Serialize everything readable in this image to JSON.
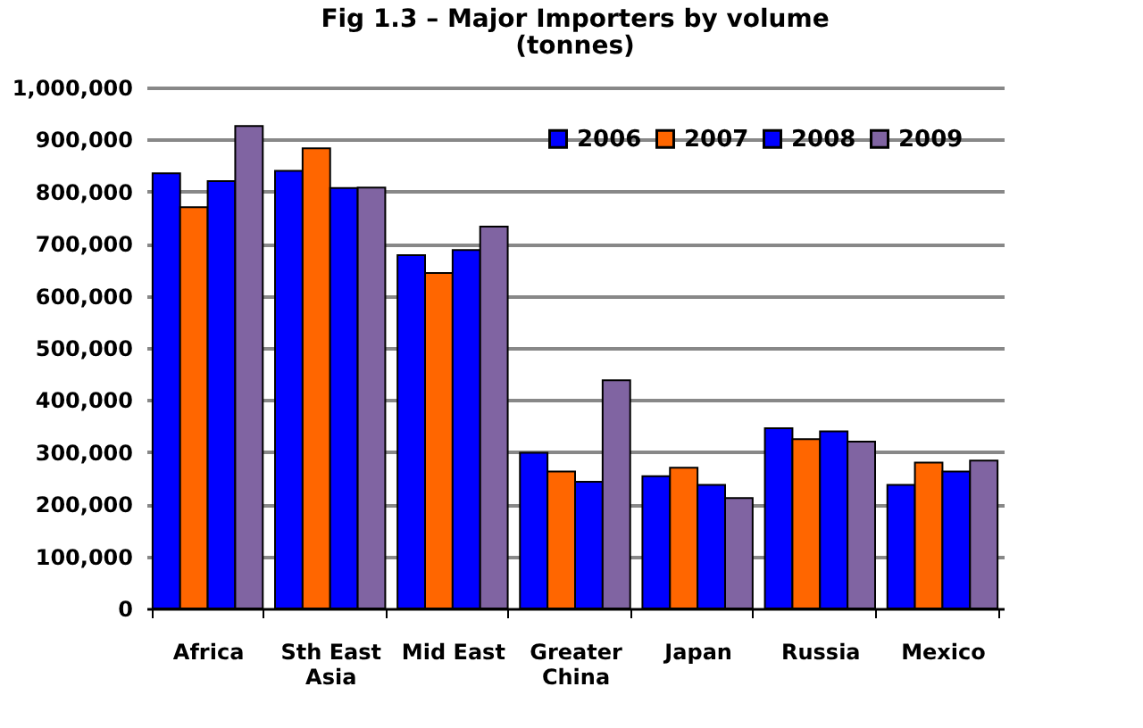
{
  "chart_data": {
    "type": "bar",
    "title": "Fig 1.3 – Major Importers by volume",
    "subtitle": "(tonnes)",
    "categories": [
      "Africa",
      "Sth East Asia",
      "Mid East",
      "Greater China",
      "Japan",
      "Russia",
      "Mexico"
    ],
    "series": [
      {
        "name": "2006",
        "color": "#0000ff",
        "values": [
          835000,
          840000,
          678000,
          299000,
          254000,
          346000,
          237000
        ]
      },
      {
        "name": "2007",
        "color": "#ff6600",
        "values": [
          770000,
          883000,
          644000,
          263000,
          270000,
          325000,
          280000
        ]
      },
      {
        "name": "2008",
        "color": "#0000ff",
        "values": [
          820000,
          807000,
          688000,
          243000,
          237000,
          340000,
          263000
        ]
      },
      {
        "name": "2009",
        "color": "#8064a2",
        "values": [
          926000,
          808000,
          733000,
          438000,
          212000,
          320000,
          284000
        ]
      }
    ],
    "ylim": [
      0,
      1000000
    ],
    "yticks": [
      0,
      {
        "value": 100000,
        "label": "100,000"
      },
      {
        "value": 200000,
        "label": "200,000"
      },
      {
        "value": 300000,
        "label": "300,000"
      },
      {
        "value": 400000,
        "label": "400,000"
      },
      {
        "value": 500000,
        "label": "500,000"
      },
      {
        "value": 600000,
        "label": "600,000"
      },
      {
        "value": 700000,
        "label": "700,000"
      },
      {
        "value": 800000,
        "label": "800,000"
      },
      {
        "value": 900000,
        "label": "900,000"
      },
      {
        "value": 1000000,
        "label": "1,000,000"
      }
    ],
    "grid": "y",
    "legend": "top right"
  }
}
